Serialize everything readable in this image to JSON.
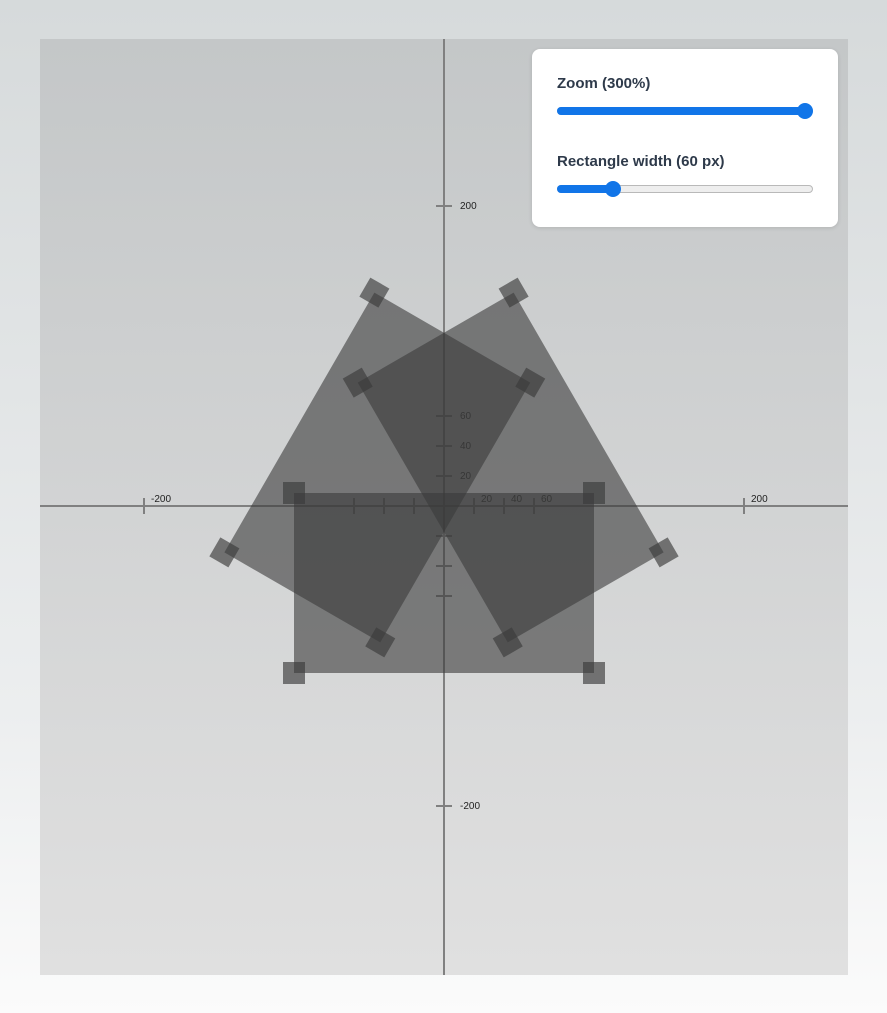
{
  "controls": {
    "zoom": {
      "label": "Zoom (300%)",
      "min": 0,
      "max": 300,
      "value": 300
    },
    "rect_width": {
      "label": "Rectangle width (60 px)",
      "min": 0,
      "max": 300,
      "value": 60
    }
  },
  "axes": {
    "x_tick_labels": [
      "-200",
      "20",
      "40",
      "60",
      "200"
    ],
    "y_tick_labels": [
      "200",
      "60",
      "40",
      "20",
      "-200"
    ]
  },
  "scene": {
    "rect_height": 120,
    "rotations_deg": [
      0,
      120,
      240
    ],
    "colors": {
      "axis": "#808080",
      "shape_fill": "#3a3a3a",
      "shape_opacity": 0.6,
      "handle_fill": "#3a3a3a",
      "handle_opacity": 0.65
    }
  }
}
